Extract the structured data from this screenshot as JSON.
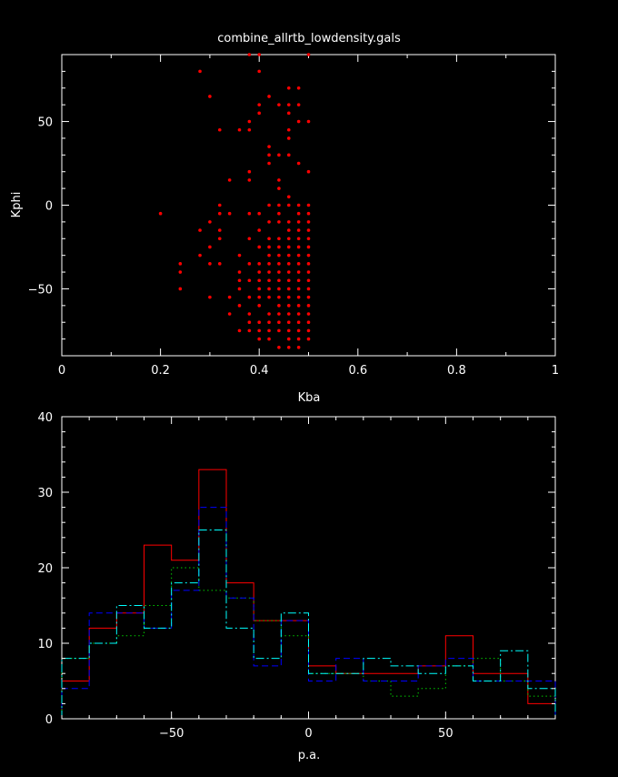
{
  "colors": {
    "background": "#000000",
    "axes": "#ffffff",
    "points": "#ff0000",
    "series_red": "#ff0000",
    "series_green": "#00cc00",
    "series_blue": "#0000ff",
    "series_cyan": "#00ffff"
  },
  "chart_data": [
    {
      "type": "scatter",
      "title": "combine_allrtb_lowdensity.gals",
      "xlabel": "Kba",
      "ylabel": "Kphi",
      "xlim": [
        0,
        1
      ],
      "ylim": [
        -90,
        90
      ],
      "xticks": [
        0,
        0.2,
        0.4,
        0.6,
        0.8,
        1
      ],
      "xtick_labels": [
        "0",
        "0.2",
        "0.4",
        "0.6",
        "0.8",
        "1"
      ],
      "yticks": [
        -50,
        0,
        50
      ],
      "ytick_labels": [
        "−50",
        "0",
        "50"
      ],
      "points": [
        [
          0.38,
          90
        ],
        [
          0.4,
          90
        ],
        [
          0.5,
          90
        ],
        [
          0.28,
          80
        ],
        [
          0.4,
          80
        ],
        [
          0.46,
          70
        ],
        [
          0.48,
          70
        ],
        [
          0.3,
          65
        ],
        [
          0.42,
          65
        ],
        [
          0.44,
          60
        ],
        [
          0.46,
          60
        ],
        [
          0.48,
          60
        ],
        [
          0.4,
          60
        ],
        [
          0.4,
          55
        ],
        [
          0.46,
          55
        ],
        [
          0.38,
          50
        ],
        [
          0.48,
          50
        ],
        [
          0.5,
          50
        ],
        [
          0.32,
          45
        ],
        [
          0.36,
          45
        ],
        [
          0.38,
          45
        ],
        [
          0.46,
          45
        ],
        [
          0.46,
          40
        ],
        [
          0.42,
          35
        ],
        [
          0.42,
          30
        ],
        [
          0.44,
          30
        ],
        [
          0.46,
          30
        ],
        [
          0.42,
          25
        ],
        [
          0.48,
          25
        ],
        [
          0.38,
          20
        ],
        [
          0.5,
          20
        ],
        [
          0.34,
          15
        ],
        [
          0.38,
          15
        ],
        [
          0.44,
          15
        ],
        [
          0.44,
          10
        ],
        [
          0.46,
          5
        ],
        [
          0.32,
          0
        ],
        [
          0.42,
          0
        ],
        [
          0.44,
          0
        ],
        [
          0.46,
          0
        ],
        [
          0.48,
          0
        ],
        [
          0.5,
          0
        ],
        [
          0.2,
          -5
        ],
        [
          0.32,
          -5
        ],
        [
          0.34,
          -5
        ],
        [
          0.38,
          -5
        ],
        [
          0.4,
          -5
        ],
        [
          0.44,
          -5
        ],
        [
          0.48,
          -5
        ],
        [
          0.5,
          -5
        ],
        [
          0.3,
          -10
        ],
        [
          0.42,
          -10
        ],
        [
          0.44,
          -10
        ],
        [
          0.46,
          -10
        ],
        [
          0.48,
          -10
        ],
        [
          0.5,
          -10
        ],
        [
          0.28,
          -15
        ],
        [
          0.32,
          -15
        ],
        [
          0.4,
          -15
        ],
        [
          0.46,
          -15
        ],
        [
          0.48,
          -15
        ],
        [
          0.5,
          -15
        ],
        [
          0.32,
          -20
        ],
        [
          0.38,
          -20
        ],
        [
          0.42,
          -20
        ],
        [
          0.44,
          -20
        ],
        [
          0.46,
          -20
        ],
        [
          0.48,
          -20
        ],
        [
          0.5,
          -20
        ],
        [
          0.3,
          -25
        ],
        [
          0.4,
          -25
        ],
        [
          0.42,
          -25
        ],
        [
          0.44,
          -25
        ],
        [
          0.46,
          -25
        ],
        [
          0.48,
          -25
        ],
        [
          0.5,
          -25
        ],
        [
          0.28,
          -30
        ],
        [
          0.36,
          -30
        ],
        [
          0.42,
          -30
        ],
        [
          0.44,
          -30
        ],
        [
          0.46,
          -30
        ],
        [
          0.48,
          -30
        ],
        [
          0.5,
          -30
        ],
        [
          0.24,
          -35
        ],
        [
          0.3,
          -35
        ],
        [
          0.32,
          -35
        ],
        [
          0.38,
          -35
        ],
        [
          0.4,
          -35
        ],
        [
          0.42,
          -35
        ],
        [
          0.44,
          -35
        ],
        [
          0.46,
          -35
        ],
        [
          0.48,
          -35
        ],
        [
          0.5,
          -35
        ],
        [
          0.24,
          -40
        ],
        [
          0.36,
          -40
        ],
        [
          0.4,
          -40
        ],
        [
          0.42,
          -40
        ],
        [
          0.44,
          -40
        ],
        [
          0.46,
          -40
        ],
        [
          0.48,
          -40
        ],
        [
          0.5,
          -40
        ],
        [
          0.36,
          -45
        ],
        [
          0.38,
          -45
        ],
        [
          0.4,
          -45
        ],
        [
          0.42,
          -45
        ],
        [
          0.44,
          -45
        ],
        [
          0.46,
          -45
        ],
        [
          0.48,
          -45
        ],
        [
          0.5,
          -45
        ],
        [
          0.24,
          -50
        ],
        [
          0.36,
          -50
        ],
        [
          0.4,
          -50
        ],
        [
          0.42,
          -50
        ],
        [
          0.44,
          -50
        ],
        [
          0.46,
          -50
        ],
        [
          0.48,
          -50
        ],
        [
          0.5,
          -50
        ],
        [
          0.3,
          -55
        ],
        [
          0.34,
          -55
        ],
        [
          0.38,
          -55
        ],
        [
          0.4,
          -55
        ],
        [
          0.42,
          -55
        ],
        [
          0.44,
          -55
        ],
        [
          0.46,
          -55
        ],
        [
          0.48,
          -55
        ],
        [
          0.5,
          -55
        ],
        [
          0.36,
          -60
        ],
        [
          0.4,
          -60
        ],
        [
          0.44,
          -60
        ],
        [
          0.46,
          -60
        ],
        [
          0.48,
          -60
        ],
        [
          0.5,
          -60
        ],
        [
          0.34,
          -65
        ],
        [
          0.38,
          -65
        ],
        [
          0.42,
          -65
        ],
        [
          0.44,
          -65
        ],
        [
          0.46,
          -65
        ],
        [
          0.48,
          -65
        ],
        [
          0.5,
          -65
        ],
        [
          0.38,
          -70
        ],
        [
          0.4,
          -70
        ],
        [
          0.42,
          -70
        ],
        [
          0.44,
          -70
        ],
        [
          0.46,
          -70
        ],
        [
          0.48,
          -70
        ],
        [
          0.5,
          -70
        ],
        [
          0.36,
          -75
        ],
        [
          0.38,
          -75
        ],
        [
          0.4,
          -75
        ],
        [
          0.42,
          -75
        ],
        [
          0.44,
          -75
        ],
        [
          0.46,
          -75
        ],
        [
          0.48,
          -75
        ],
        [
          0.5,
          -75
        ],
        [
          0.4,
          -80
        ],
        [
          0.42,
          -80
        ],
        [
          0.46,
          -80
        ],
        [
          0.48,
          -80
        ],
        [
          0.5,
          -80
        ],
        [
          0.44,
          -85
        ],
        [
          0.46,
          -85
        ],
        [
          0.48,
          -85
        ]
      ]
    },
    {
      "type": "histogram",
      "title": "",
      "xlabel": "p.a.",
      "ylabel": "",
      "xlim": [
        -90,
        90
      ],
      "ylim": [
        0,
        40
      ],
      "xticks": [
        -50,
        0,
        50
      ],
      "xtick_labels": [
        "−50",
        "0",
        "50"
      ],
      "yticks": [
        0,
        10,
        20,
        30,
        40
      ],
      "ytick_labels": [
        "0",
        "10",
        "20",
        "30",
        "40"
      ],
      "bin_edges": [
        -90,
        -80,
        -70,
        -60,
        -50,
        -40,
        -30,
        -20,
        -10,
        0,
        10,
        20,
        30,
        40,
        50,
        60,
        70,
        80,
        90
      ],
      "series": [
        {
          "color": "#ff0000",
          "dash": "solid",
          "values": [
            5,
            12,
            14,
            23,
            21,
            33,
            18,
            13,
            13,
            7,
            6,
            6,
            6,
            7,
            11,
            6,
            6,
            2
          ]
        },
        {
          "color": "#00cc00",
          "dash": "dotted",
          "values": [
            8,
            10,
            11,
            15,
            20,
            17,
            16,
            13,
            11,
            6,
            6,
            5,
            3,
            4,
            7,
            8,
            5,
            3
          ]
        },
        {
          "color": "#0000ff",
          "dash": "dashed",
          "values": [
            4,
            14,
            14,
            12,
            17,
            28,
            16,
            7,
            13,
            5,
            8,
            5,
            5,
            7,
            8,
            5,
            5,
            5
          ]
        },
        {
          "color": "#00ffff",
          "dash": "dashdot",
          "values": [
            8,
            10,
            15,
            12,
            18,
            25,
            12,
            8,
            14,
            6,
            6,
            8,
            7,
            6,
            7,
            5,
            9,
            4
          ]
        }
      ]
    }
  ]
}
